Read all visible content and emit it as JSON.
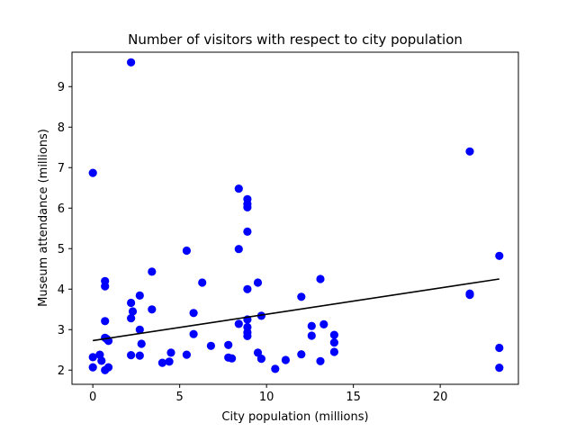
{
  "chart_data": {
    "type": "scatter",
    "title": "Number of visitors with respect to city population",
    "xlabel": "City population (millions)",
    "ylabel": "Museum attendance (millions)",
    "xlim": [
      -1.2,
      24.5
    ],
    "ylim": [
      1.65,
      9.85
    ],
    "xticks": [
      0,
      5,
      10,
      15,
      20
    ],
    "yticks": [
      2,
      3,
      4,
      5,
      6,
      7,
      8,
      9
    ],
    "grid": false,
    "legend": "none",
    "point_color": "#0000ff",
    "line_color": "#000000",
    "points": [
      [
        2.2,
        9.6
      ],
      [
        0.0,
        6.87
      ],
      [
        21.7,
        7.4
      ],
      [
        8.4,
        6.48
      ],
      [
        8.9,
        6.22
      ],
      [
        8.9,
        6.1
      ],
      [
        8.9,
        6.02
      ],
      [
        8.9,
        5.42
      ],
      [
        8.4,
        4.99
      ],
      [
        5.4,
        4.95
      ],
      [
        23.4,
        4.82
      ],
      [
        3.4,
        4.43
      ],
      [
        13.1,
        4.25
      ],
      [
        0.7,
        4.2
      ],
      [
        6.3,
        4.16
      ],
      [
        9.5,
        4.16
      ],
      [
        0.7,
        4.07
      ],
      [
        8.9,
        4.0
      ],
      [
        21.7,
        3.89
      ],
      [
        21.7,
        3.86
      ],
      [
        2.7,
        3.84
      ],
      [
        12.0,
        3.81
      ],
      [
        2.2,
        3.66
      ],
      [
        3.4,
        3.5
      ],
      [
        2.3,
        3.45
      ],
      [
        5.8,
        3.41
      ],
      [
        9.7,
        3.34
      ],
      [
        2.2,
        3.28
      ],
      [
        8.9,
        3.25
      ],
      [
        0.7,
        3.21
      ],
      [
        8.4,
        3.14
      ],
      [
        13.3,
        3.13
      ],
      [
        12.6,
        3.09
      ],
      [
        8.9,
        3.06
      ],
      [
        2.7,
        3.0
      ],
      [
        8.9,
        2.93
      ],
      [
        5.8,
        2.89
      ],
      [
        13.9,
        2.87
      ],
      [
        12.6,
        2.85
      ],
      [
        8.9,
        2.84
      ],
      [
        0.7,
        2.8
      ],
      [
        0.8,
        2.77
      ],
      [
        0.9,
        2.72
      ],
      [
        13.9,
        2.68
      ],
      [
        2.8,
        2.65
      ],
      [
        7.8,
        2.62
      ],
      [
        6.8,
        2.6
      ],
      [
        23.4,
        2.55
      ],
      [
        13.9,
        2.45
      ],
      [
        9.5,
        2.43
      ],
      [
        4.5,
        2.43
      ],
      [
        12.0,
        2.39
      ],
      [
        0.4,
        2.38
      ],
      [
        5.4,
        2.38
      ],
      [
        2.2,
        2.37
      ],
      [
        2.7,
        2.36
      ],
      [
        0.0,
        2.32
      ],
      [
        7.8,
        2.31
      ],
      [
        8.0,
        2.29
      ],
      [
        9.7,
        2.28
      ],
      [
        11.1,
        2.25
      ],
      [
        0.5,
        2.23
      ],
      [
        13.1,
        2.22
      ],
      [
        4.4,
        2.21
      ],
      [
        4.0,
        2.18
      ],
      [
        0.0,
        2.07
      ],
      [
        0.9,
        2.07
      ],
      [
        23.4,
        2.06
      ],
      [
        10.5,
        2.03
      ],
      [
        0.7,
        2.0
      ]
    ],
    "trendline": {
      "x": [
        0.0,
        23.4
      ],
      "y": [
        2.73,
        4.25
      ]
    }
  }
}
